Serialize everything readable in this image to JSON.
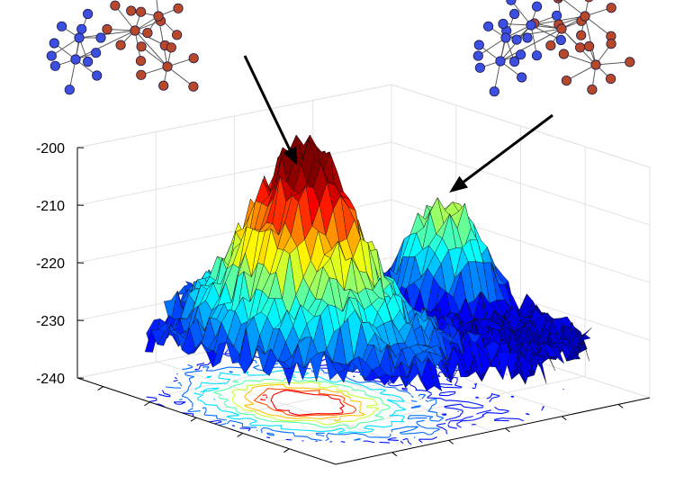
{
  "chart_data": {
    "type": "surface",
    "title": "",
    "xlabel": "",
    "ylabel": "",
    "zlabel": "",
    "z_axis": {
      "range": [
        -240,
        -200
      ],
      "ticks": [
        {
          "value": -200,
          "label": "-200"
        },
        {
          "value": -210,
          "label": "-210"
        },
        {
          "value": -220,
          "label": "-220"
        },
        {
          "value": -230,
          "label": "-230"
        },
        {
          "value": -240,
          "label": "-240"
        }
      ]
    },
    "grid": true,
    "colormap": "jet",
    "surface_base": -232,
    "peaks": [
      {
        "u": 0.29,
        "v": 0.48,
        "z": -199
      },
      {
        "u": 0.86,
        "v": 0.62,
        "z": -213
      }
    ],
    "contour_projection": true,
    "annotations": [
      {
        "type": "arrow",
        "points_to": "peaks.0"
      },
      {
        "type": "arrow",
        "points_to": "peaks.1"
      }
    ],
    "network_insets": [
      {
        "attached_to": "peaks.0",
        "node_colors": {
          "community_a": "#3d4fe0",
          "community_b": "#b8482a"
        },
        "hub_counts": {
          "community_a": 2,
          "community_b": 3
        }
      },
      {
        "attached_to": "peaks.1",
        "node_colors": {
          "community_a": "#3d4fe0",
          "community_b": "#b8482a"
        },
        "hub_counts": {
          "community_a": 3,
          "community_b": 3
        }
      }
    ]
  },
  "colors": {
    "axis": "#000000",
    "grid": "#e3e3e3",
    "edge": "#5a5a5a",
    "node_stroke": "#1b1b4a",
    "surface_edge": "#101010"
  }
}
